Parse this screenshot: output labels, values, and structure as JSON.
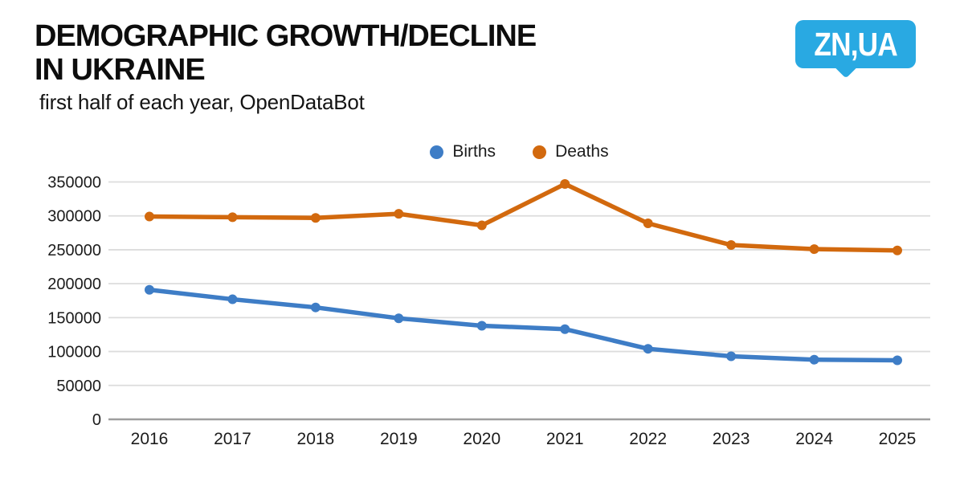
{
  "header": {
    "title": "DEMOGRAPHIC GROWTH/DECLINE\nIN UKRAINE",
    "subtitle": "first half of each year, OpenDataBot",
    "logo_text": "ZN,UA",
    "logo_color": "#29a9e2"
  },
  "chart_data": {
    "type": "line",
    "title": "DEMOGRAPHIC GROWTH/DECLINE IN UKRAINE",
    "subtitle": "first half of each year, OpenDataBot",
    "categories": [
      "2016",
      "2017",
      "2018",
      "2019",
      "2020",
      "2021",
      "2022",
      "2023",
      "2024",
      "2025"
    ],
    "series": [
      {
        "name": "Births",
        "color": "#3e7dc6",
        "values": [
          191000,
          177000,
          165000,
          149000,
          138000,
          133000,
          104000,
          93000,
          88000,
          87000
        ]
      },
      {
        "name": "Deaths",
        "color": "#d2690e",
        "values": [
          299000,
          298000,
          297000,
          303000,
          286000,
          347000,
          289000,
          257000,
          251000,
          249000
        ]
      }
    ],
    "xlabel": "",
    "ylabel": "",
    "ylim": [
      0,
      370000
    ],
    "yticks": [
      0,
      50000,
      100000,
      150000,
      200000,
      250000,
      300000,
      350000
    ],
    "grid": true,
    "grid_color": "#dcdcdc",
    "axis_color": "#9e9e9e",
    "legend_position": "top-center"
  }
}
